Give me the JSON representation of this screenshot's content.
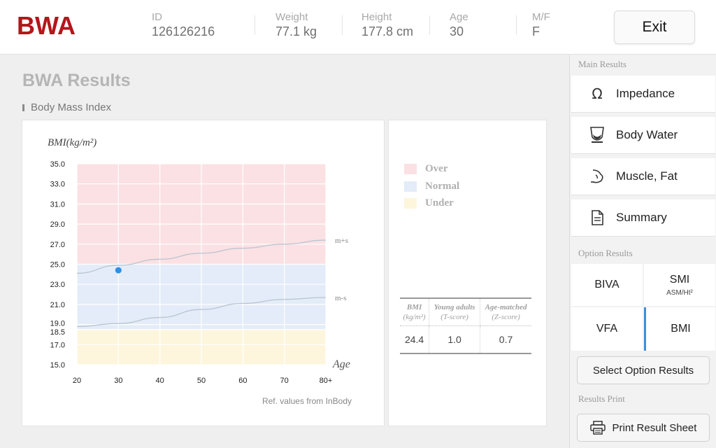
{
  "header": {
    "logo_text": "BWA",
    "fields": [
      {
        "label": "ID",
        "value": "126126216"
      },
      {
        "label": "Weight",
        "value": "77.1 kg"
      },
      {
        "label": "Height",
        "value": "177.8 cm"
      },
      {
        "label": "Age",
        "value": "30"
      },
      {
        "label": "M/F",
        "value": "F"
      }
    ],
    "exit_label": "Exit"
  },
  "main": {
    "title": "BWA Results",
    "subtitle": "Body Mass Index",
    "reference_note": "Ref. values from InBody"
  },
  "chart_data": {
    "type": "line",
    "ylabel": "BMI(kg/m²)",
    "xlabel": "Age",
    "x_ticks": [
      "20",
      "30",
      "40",
      "50",
      "60",
      "70",
      "80+"
    ],
    "y_ticks": [
      "35.0",
      "33.0",
      "31.0",
      "29.0",
      "27.0",
      "25.0",
      "23.0",
      "21.0",
      "19.0",
      "18.5",
      "17.0",
      "15.0"
    ],
    "xlim": [
      20,
      80
    ],
    "ylim": [
      15,
      35
    ],
    "bands": [
      {
        "name": "Over",
        "from": 25.0,
        "to": 35.0,
        "color": "#fbe1e3"
      },
      {
        "name": "Normal",
        "from": 18.5,
        "to": 25.0,
        "color": "#e3ecf8"
      },
      {
        "name": "Under",
        "from": 15.0,
        "to": 18.5,
        "color": "#fdf6dd"
      }
    ],
    "series": [
      {
        "name": "m+s",
        "x": [
          20,
          30,
          40,
          50,
          60,
          70,
          80
        ],
        "y": [
          24.1,
          24.9,
          25.5,
          26.1,
          26.6,
          27.0,
          27.4
        ]
      },
      {
        "name": "m-s",
        "x": [
          20,
          30,
          40,
          50,
          60,
          70,
          80
        ],
        "y": [
          18.8,
          19.1,
          19.7,
          20.5,
          21.1,
          21.5,
          21.7
        ]
      }
    ],
    "point": {
      "x": 30,
      "y": 24.4,
      "color": "#2f8fe6"
    },
    "grid": true
  },
  "legend": {
    "items": [
      {
        "label": "Over",
        "color": "#fbe1e3"
      },
      {
        "label": "Normal",
        "color": "#e3ecf8"
      },
      {
        "label": "Under",
        "color": "#fdf6dd"
      }
    ]
  },
  "score_table": {
    "headers": [
      {
        "main": "BMI",
        "sub": "(kg/m²)"
      },
      {
        "main": "Young adults",
        "sub": "(T-score)"
      },
      {
        "main": "Age-matched",
        "sub": "(Z-score)"
      }
    ],
    "values": [
      "24.4",
      "1.0",
      "0.7"
    ]
  },
  "sidebar": {
    "main_results_label": "Main Results",
    "main_results": [
      {
        "label": "Impedance",
        "icon": "omega-icon"
      },
      {
        "label": "Body Water",
        "icon": "body-water-icon"
      },
      {
        "label": "Muscle, Fat",
        "icon": "muscle-icon"
      },
      {
        "label": "Summary",
        "icon": "document-icon"
      }
    ],
    "option_results_label": "Option Results",
    "options": [
      {
        "label": "BIVA",
        "sub": ""
      },
      {
        "label": "SMI",
        "sub": "ASM/Ht²"
      },
      {
        "label": "VFA",
        "sub": ""
      },
      {
        "label": "BMI",
        "sub": "",
        "selected": true
      }
    ],
    "select_option_label": "Select Option Results",
    "results_print_label": "Results Print",
    "print_label": "Print Result Sheet"
  }
}
